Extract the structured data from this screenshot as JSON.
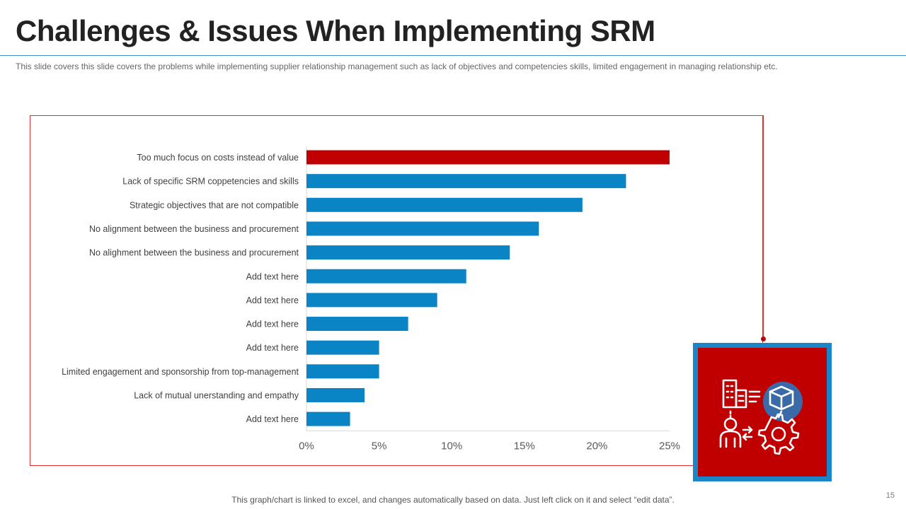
{
  "slide": {
    "title": "Challenges & Issues When Implementing SRM",
    "subtitle": "This slide covers this slide covers the problems while implementing supplier relationship management  such as lack of objectives and competencies skills, limited engagement  in managing relationship etc.",
    "footer_note": "This graph/chart is linked to excel, and changes automatically based on data. Just left click on it and select “edit data”.",
    "page_number": "15"
  },
  "icon": {
    "name": "supplier-relationship-icon"
  },
  "colors": {
    "highlight_bar": "#c00000",
    "bar": "#0b84c6",
    "frame": "#e03030",
    "icon_box_border": "#1a86c8",
    "icon_box_fill": "#c00000",
    "icon_badge": "#3a6aa8"
  },
  "chart_data": {
    "type": "bar",
    "orientation": "horizontal",
    "categories": [
      "Too much focus on costs instead of value",
      "Lack of specific SRM coppetencies and skills",
      "Strategic objectives that are not compatible",
      "No alignment between the business and procurement",
      "No alighment between the business and procurement",
      "Add text here",
      "Add text here",
      "Add text here",
      "Add text here",
      "Limited engagement and sponsorship from top-management",
      "Lack of mutual unerstanding and empathy",
      "Add text here"
    ],
    "values": [
      0.25,
      0.22,
      0.19,
      0.16,
      0.14,
      0.11,
      0.09,
      0.07,
      0.05,
      0.05,
      0.04,
      0.03
    ],
    "highlight_index": 0,
    "xlim": [
      0,
      0.25
    ],
    "x_ticks": [
      0,
      0.05,
      0.1,
      0.15,
      0.2,
      0.25
    ],
    "x_tick_labels": [
      "0%",
      "5%",
      "10%",
      "15%",
      "20%",
      "25%"
    ],
    "grid": false,
    "legend": "none"
  }
}
